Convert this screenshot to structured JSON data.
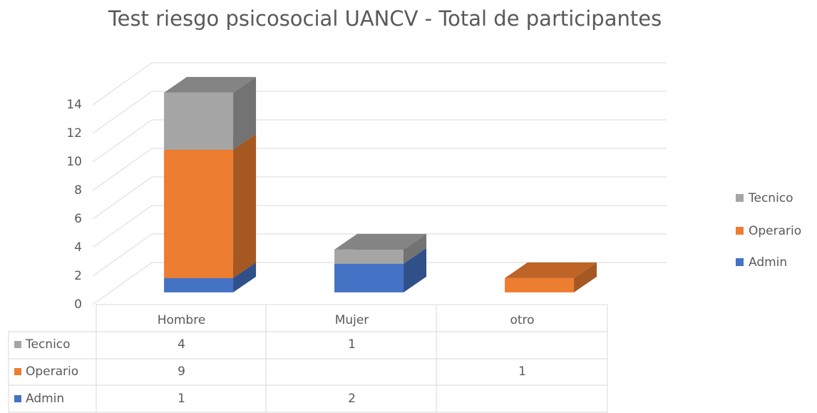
{
  "chart_data": {
    "type": "bar3d_stacked",
    "title": "Test riesgo psicosocial UANCV - Total de participantes",
    "categories": [
      "Hombre",
      "Mujer",
      "otro"
    ],
    "series": [
      {
        "name": "Admin",
        "color": "#4472c4",
        "values": [
          1,
          2,
          null
        ]
      },
      {
        "name": "Operario",
        "color": "#ed7d31",
        "values": [
          9,
          null,
          1
        ]
      },
      {
        "name": "Tecnico",
        "color": "#a5a5a5",
        "values": [
          4,
          1,
          null
        ]
      }
    ],
    "ylim": [
      0,
      14
    ],
    "yticks": [
      0,
      2,
      4,
      6,
      8,
      10,
      12,
      14
    ],
    "grid": true,
    "legend": "right",
    "data_table": true
  }
}
